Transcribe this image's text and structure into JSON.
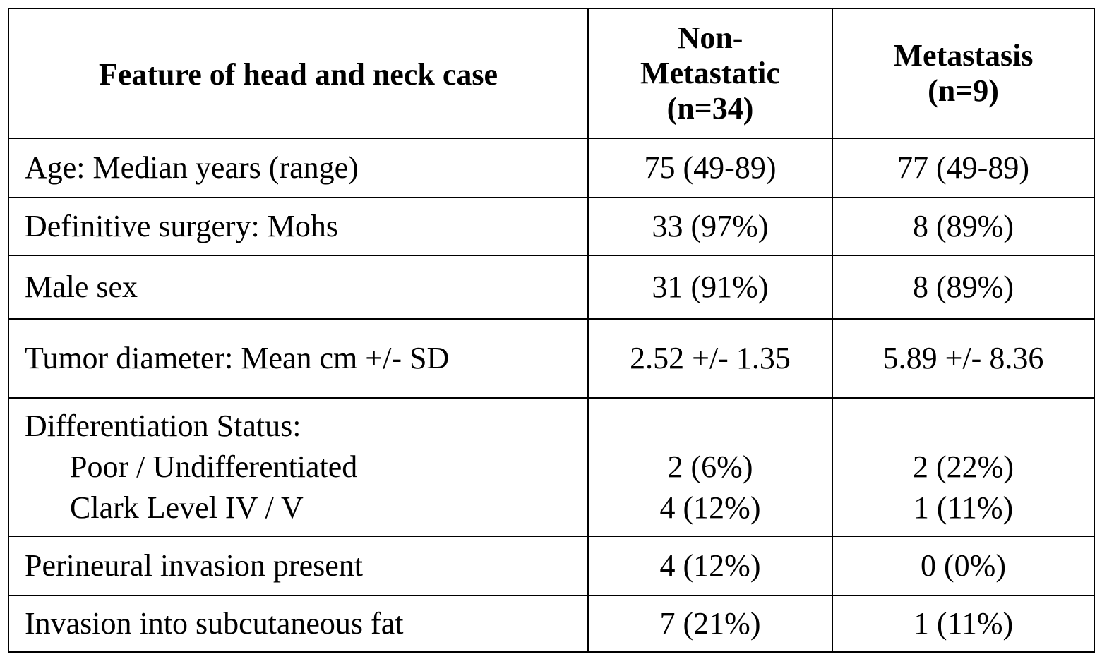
{
  "table": {
    "headers": {
      "feature": "Feature of head and neck case",
      "non_metastatic": [
        "Non-",
        "Metastatic",
        "(n=34)"
      ],
      "metastasis": [
        "Metastasis",
        "(n=9)"
      ]
    },
    "rows": [
      {
        "label": "Age: Median years (range)",
        "non_metastatic": "75 (49-89)",
        "metastasis": "77 (49-89)"
      },
      {
        "label": "Definitive surgery: Mohs",
        "non_metastatic": "33 (97%)",
        "metastasis": "8 (89%)"
      },
      {
        "label": "Male sex",
        "non_metastatic": "31 (91%)",
        "metastasis": "8 (89%)"
      },
      {
        "label": "Tumor diameter: Mean cm +/- SD",
        "non_metastatic": "2.52 +/- 1.35",
        "metastasis": "5.89 +/- 8.36"
      },
      {
        "label": "Differentiation Status:",
        "sub_rows": [
          {
            "label": "Poor / Undifferentiated",
            "non_metastatic": "2 (6%)",
            "metastasis": "2 (22%)"
          },
          {
            "label": "Clark Level IV / V",
            "non_metastatic": "4 (12%)",
            "metastasis": "1 (11%)"
          }
        ]
      },
      {
        "label": "Perineural invasion present",
        "non_metastatic": "4 (12%)",
        "metastasis": "0 (0%)"
      },
      {
        "label": "Invasion into subcutaneous fat",
        "non_metastatic": "7 (21%)",
        "metastasis": "1 (11%)"
      }
    ]
  }
}
